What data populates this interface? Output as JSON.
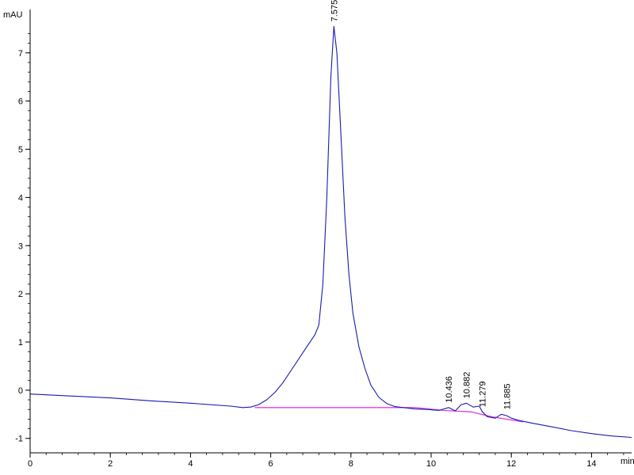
{
  "chart_data": {
    "type": "line",
    "xlabel": "min",
    "ylabel": "mAU",
    "xlim": [
      0,
      15
    ],
    "ylim": [
      -1.3,
      7.9
    ],
    "x_ticks": [
      0,
      2,
      4,
      6,
      8,
      10,
      12,
      14
    ],
    "y_ticks": [
      -1,
      0,
      1,
      2,
      3,
      4,
      5,
      6,
      7
    ],
    "grid": false,
    "colors": {
      "signal": "#1a1ab0",
      "baseline": "#e040e0",
      "axis": "#000000"
    },
    "signal": {
      "x": [
        0,
        1,
        2,
        3,
        4,
        5.0,
        5.3,
        5.5,
        5.7,
        5.9,
        6.1,
        6.3,
        6.5,
        6.7,
        6.9,
        7.1,
        7.2,
        7.3,
        7.4,
        7.5,
        7.575,
        7.65,
        7.75,
        7.85,
        7.95,
        8.05,
        8.2,
        8.35,
        8.5,
        8.7,
        8.9,
        9.1,
        9.3,
        9.6,
        9.9,
        10.2,
        10.436,
        10.6,
        10.75,
        10.882,
        11.05,
        11.2,
        11.279,
        11.4,
        11.6,
        11.75,
        11.885,
        12.0,
        12.2,
        12.5,
        13.0,
        13.5,
        14.0,
        14.5,
        15.0
      ],
      "y": [
        -0.08,
        -0.12,
        -0.16,
        -0.22,
        -0.27,
        -0.33,
        -0.36,
        -0.35,
        -0.3,
        -0.2,
        -0.05,
        0.15,
        0.4,
        0.65,
        0.9,
        1.15,
        1.35,
        2.2,
        4.0,
        6.5,
        7.55,
        7.0,
        5.3,
        3.6,
        2.4,
        1.6,
        0.9,
        0.45,
        0.1,
        -0.15,
        -0.28,
        -0.34,
        -0.36,
        -0.39,
        -0.4,
        -0.42,
        -0.36,
        -0.43,
        -0.3,
        -0.27,
        -0.35,
        -0.33,
        -0.45,
        -0.55,
        -0.58,
        -0.5,
        -0.53,
        -0.58,
        -0.63,
        -0.68,
        -0.76,
        -0.84,
        -0.9,
        -0.95,
        -0.98
      ]
    },
    "baseline": {
      "x": [
        5.6,
        9.6,
        10.3,
        11.0,
        11.5,
        12.3
      ],
      "y": [
        -0.36,
        -0.36,
        -0.42,
        -0.45,
        -0.55,
        -0.66
      ]
    },
    "peak_labels": [
      {
        "x": 7.575,
        "y": 7.55,
        "text": "7.575"
      },
      {
        "x": 10.436,
        "y": -0.36,
        "text": "10.436"
      },
      {
        "x": 10.882,
        "y": -0.27,
        "text": "10.882"
      },
      {
        "x": 11.279,
        "y": -0.45,
        "text": "11.279"
      },
      {
        "x": 11.885,
        "y": -0.5,
        "text": "11.885"
      }
    ]
  }
}
